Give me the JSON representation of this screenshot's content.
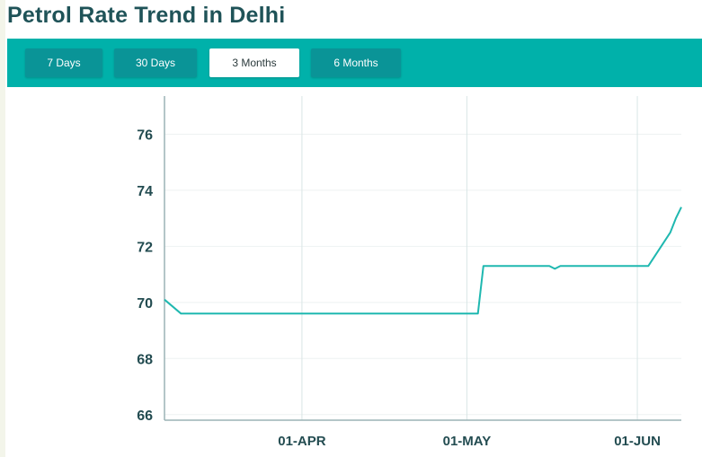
{
  "page": {
    "title": "Petrol Rate Trend in Delhi"
  },
  "range_tabs": [
    {
      "label": "7 Days",
      "active": false
    },
    {
      "label": "30 Days",
      "active": false
    },
    {
      "label": "3 Months",
      "active": true
    },
    {
      "label": "6 Months",
      "active": false
    }
  ],
  "colors": {
    "accent": "#00b1aa",
    "tab_bg": "#0a9497",
    "line": "#1fb8b0",
    "title": "#1f5358"
  },
  "chart_data": {
    "type": "line",
    "title": "",
    "xlabel": "",
    "ylabel": "",
    "ylim": [
      65.8,
      77.2
    ],
    "xlim": [
      "2020-03-07",
      "2020-06-09"
    ],
    "yticks": [
      66,
      68,
      70,
      72,
      74,
      76
    ],
    "xticks": [
      {
        "date": "2020-04-01",
        "label": "01-APR"
      },
      {
        "date": "2020-05-01",
        "label": "01-MAY"
      },
      {
        "date": "2020-06-01",
        "label": "01-JUN"
      }
    ],
    "grid": true,
    "series": [
      {
        "name": "",
        "points": [
          {
            "x": "2020-03-07",
            "y": 70.1
          },
          {
            "x": "2020-03-10",
            "y": 69.6
          },
          {
            "x": "2020-04-06",
            "y": 69.6
          },
          {
            "x": "2020-04-07",
            "y": 69.6
          },
          {
            "x": "2020-05-03",
            "y": 69.6
          },
          {
            "x": "2020-05-04",
            "y": 71.3
          },
          {
            "x": "2020-05-16",
            "y": 71.3
          },
          {
            "x": "2020-05-17",
            "y": 71.2
          },
          {
            "x": "2020-05-18",
            "y": 71.3
          },
          {
            "x": "2020-06-03",
            "y": 71.3
          },
          {
            "x": "2020-06-07",
            "y": 72.5
          },
          {
            "x": "2020-06-08",
            "y": 73.0
          },
          {
            "x": "2020-06-09",
            "y": 73.4
          }
        ]
      }
    ]
  }
}
